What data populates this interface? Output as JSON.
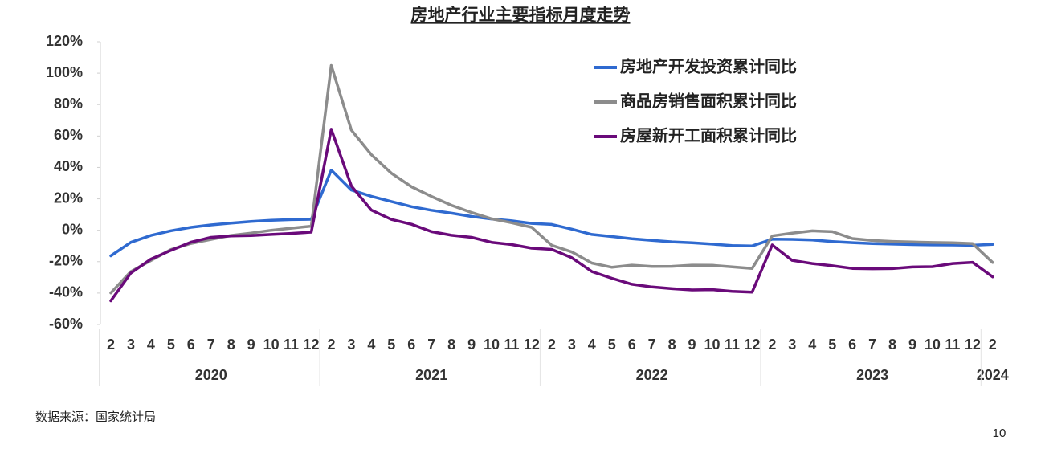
{
  "chart_data": {
    "type": "line",
    "title": "房地产行业主要指标月度走势",
    "categories": [
      "2",
      "3",
      "4",
      "5",
      "6",
      "7",
      "8",
      "9",
      "10",
      "11",
      "12",
      "2",
      "3",
      "4",
      "5",
      "6",
      "7",
      "8",
      "9",
      "10",
      "11",
      "12",
      "2",
      "3",
      "4",
      "5",
      "6",
      "7",
      "8",
      "9",
      "10",
      "11",
      "12",
      "2",
      "3",
      "4",
      "5",
      "6",
      "7",
      "8",
      "9",
      "10",
      "11",
      "12",
      "2"
    ],
    "groups": [
      "2020",
      "2021",
      "2022",
      "2023",
      "2024"
    ],
    "series": [
      {
        "name": "房地产开发投资累计同比",
        "color": "#2f6ad0",
        "values": [
          -16.3,
          -7.7,
          -3.3,
          -0.3,
          1.9,
          3.4,
          4.6,
          5.6,
          6.3,
          6.8,
          7.0,
          38.3,
          25.6,
          21.6,
          18.3,
          15.0,
          12.7,
          10.9,
          8.8,
          7.2,
          6.0,
          4.4,
          3.7,
          0.7,
          -2.7,
          -4.0,
          -5.4,
          -6.4,
          -7.4,
          -8.0,
          -8.8,
          -9.8,
          -10.0,
          -5.7,
          -5.8,
          -6.2,
          -7.2,
          -7.9,
          -8.5,
          -8.8,
          -9.1,
          -9.3,
          -9.4,
          -9.6,
          -9.0
        ]
      },
      {
        "name": "商品房销售面积累计同比",
        "color": "#8c8c8c",
        "values": [
          -39.9,
          -26.3,
          -19.3,
          -12.3,
          -8.4,
          -5.8,
          -3.3,
          -1.8,
          0.0,
          1.3,
          2.6,
          104.9,
          63.8,
          48.1,
          36.3,
          27.7,
          21.5,
          15.9,
          11.3,
          7.3,
          4.8,
          1.9,
          -9.6,
          -13.8,
          -20.9,
          -23.6,
          -22.2,
          -23.1,
          -23.0,
          -22.2,
          -22.3,
          -23.3,
          -24.3,
          -3.6,
          -1.8,
          -0.4,
          -0.9,
          -5.3,
          -6.5,
          -7.1,
          -7.5,
          -7.8,
          -8.0,
          -8.5,
          -20.5
        ]
      },
      {
        "name": "房屋新开工面积累计同比",
        "color": "#6a0a7a",
        "values": [
          -44.9,
          -27.2,
          -18.4,
          -12.8,
          -7.6,
          -4.5,
          -3.6,
          -3.4,
          -2.7,
          -2.0,
          -1.2,
          64.3,
          28.2,
          12.8,
          6.9,
          3.8,
          -0.9,
          -3.2,
          -4.5,
          -7.7,
          -9.1,
          -11.4,
          -12.2,
          -17.5,
          -26.3,
          -30.6,
          -34.4,
          -36.1,
          -37.2,
          -38.0,
          -37.8,
          -38.9,
          -39.4,
          -9.4,
          -19.2,
          -21.2,
          -22.6,
          -24.3,
          -24.5,
          -24.4,
          -23.4,
          -23.2,
          -21.2,
          -20.4,
          -29.7
        ]
      }
    ],
    "ylim": [
      -60,
      120
    ],
    "yticks": [
      {
        "value": -60,
        "label": "-60%"
      },
      {
        "value": -40,
        "label": "-40%"
      },
      {
        "value": -20,
        "label": "-20%"
      },
      {
        "value": 0,
        "label": "0%"
      },
      {
        "value": 20,
        "label": "20%"
      },
      {
        "value": 40,
        "label": "40%"
      },
      {
        "value": 60,
        "label": "60%"
      },
      {
        "value": 80,
        "label": "80%"
      },
      {
        "value": 100,
        "label": "100%"
      },
      {
        "value": 120,
        "label": "120%"
      }
    ],
    "grid": false,
    "legend": "upper right",
    "source": "数据来源：国家统计局",
    "page_number": "10"
  }
}
